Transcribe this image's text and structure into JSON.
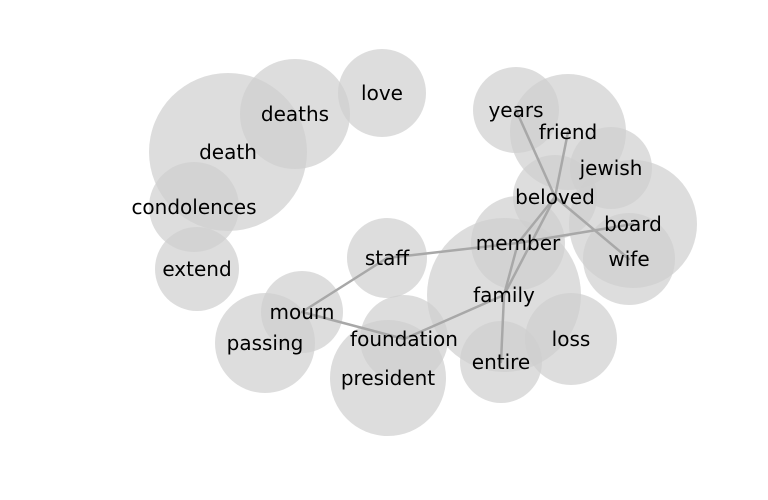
{
  "diagram": {
    "type": "word-cooccurrence-bubble-graph",
    "nodes": [
      {
        "id": "death",
        "label": "death"
      },
      {
        "id": "deaths",
        "label": "deaths"
      },
      {
        "id": "love",
        "label": "love"
      },
      {
        "id": "condolences",
        "label": "condolences"
      },
      {
        "id": "extend",
        "label": "extend"
      },
      {
        "id": "years",
        "label": "years"
      },
      {
        "id": "friend",
        "label": "friend"
      },
      {
        "id": "jewish",
        "label": "jewish"
      },
      {
        "id": "beloved",
        "label": "beloved"
      },
      {
        "id": "board",
        "label": "board"
      },
      {
        "id": "member",
        "label": "member"
      },
      {
        "id": "wife",
        "label": "wife"
      },
      {
        "id": "staff",
        "label": "staff"
      },
      {
        "id": "family",
        "label": "family"
      },
      {
        "id": "mourn",
        "label": "mourn"
      },
      {
        "id": "passing",
        "label": "passing"
      },
      {
        "id": "foundation",
        "label": "foundation"
      },
      {
        "id": "loss",
        "label": "loss"
      },
      {
        "id": "entire",
        "label": "entire"
      },
      {
        "id": "president",
        "label": "president"
      }
    ],
    "edges": [
      [
        "years",
        "beloved"
      ],
      [
        "friend",
        "beloved"
      ],
      [
        "beloved",
        "wife"
      ],
      [
        "beloved",
        "member"
      ],
      [
        "beloved",
        "family"
      ],
      [
        "member",
        "board"
      ],
      [
        "member",
        "staff"
      ],
      [
        "member",
        "family"
      ],
      [
        "family",
        "foundation"
      ],
      [
        "family",
        "entire"
      ],
      [
        "mourn",
        "staff"
      ],
      [
        "mourn",
        "foundation"
      ]
    ],
    "colors": {
      "bubble": "#cfcfcf",
      "edge": "#a8a8a8",
      "text": "#000000"
    }
  }
}
